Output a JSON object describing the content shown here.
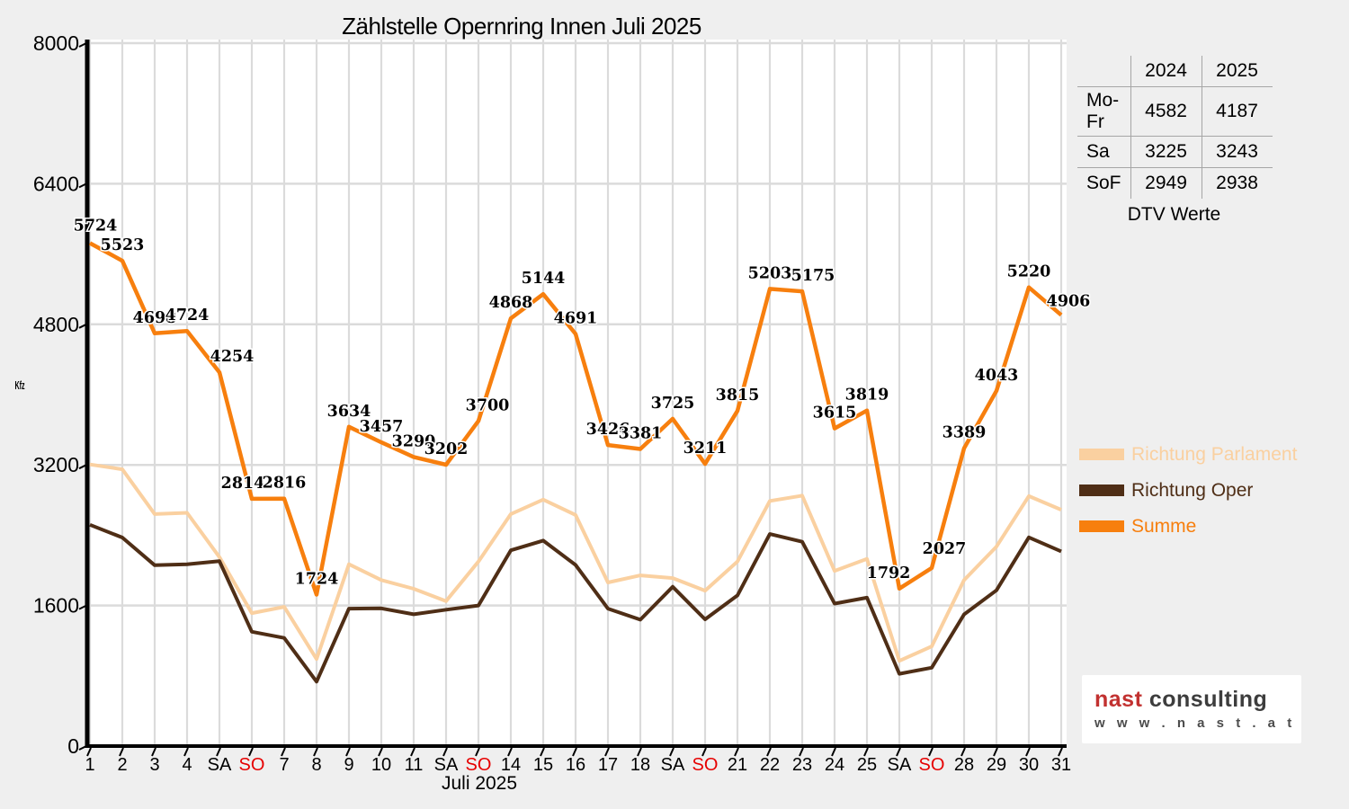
{
  "title": "Zählstelle Opernring Innen Juli 2025",
  "chart_data": {
    "type": "line",
    "x_labels": [
      "1",
      "2",
      "3",
      "4",
      "SA",
      "SO",
      "7",
      "8",
      "9",
      "10",
      "11",
      "SA",
      "SO",
      "14",
      "15",
      "16",
      "17",
      "18",
      "SA",
      "SO",
      "21",
      "22",
      "23",
      "24",
      "25",
      "SA",
      "SO",
      "28",
      "29",
      "30",
      "31"
    ],
    "xlabel": "Juli 2025",
    "ylabel": "Kfz",
    "ylim": [
      0,
      8000
    ],
    "yticks": [
      0,
      1600,
      3200,
      4800,
      6400,
      8000
    ],
    "grid": true,
    "legend_position": "right",
    "sunday_label_color": "#e60000",
    "series": [
      {
        "name": "Richtung Parlament",
        "color": "#fad0a0",
        "values": [
          3205,
          3150,
          2640,
          2655,
          2150,
          1513,
          1585,
          990,
          2070,
          1890,
          1790,
          1650,
          2100,
          2640,
          2805,
          2630,
          1862,
          1943,
          1912,
          1769,
          2100,
          2790,
          2850,
          1994,
          2130,
          970,
          1135,
          1890,
          2270,
          2845,
          2690
        ]
      },
      {
        "name": "Richtung Oper",
        "color": "#4f2e16",
        "values": [
          2519,
          2373,
          2058,
          2069,
          2104,
          1301,
          1231,
          734,
          1564,
          1567,
          1500,
          1552,
          1600,
          2228,
          2339,
          2061,
          1564,
          1438,
          1813,
          1442,
          1715,
          2413,
          2325,
          1621,
          1689,
          822,
          892,
          1499,
          1773,
          2375,
          2216
        ]
      },
      {
        "name": "Summe",
        "color": "#f77f0e",
        "labeled": true,
        "values": [
          5724,
          5523,
          4698,
          4724,
          4254,
          2814,
          2816,
          1724,
          3634,
          3457,
          3290,
          3202,
          3700,
          4868,
          5144,
          4691,
          3426,
          3381,
          3725,
          3211,
          3815,
          5203,
          5175,
          3615,
          3819,
          1792,
          2027,
          3389,
          4043,
          5220,
          4906
        ]
      }
    ]
  },
  "table": {
    "col_headers": [
      "2024",
      "2025"
    ],
    "rows": [
      {
        "label": "Mo-Fr",
        "v2024": "4582",
        "v2025": "4187"
      },
      {
        "label": "Sa",
        "v2024": "3225",
        "v2025": "3243"
      },
      {
        "label": "SoF",
        "v2024": "2949",
        "v2025": "2938"
      }
    ],
    "caption": "DTV Werte"
  },
  "legend": {
    "items": [
      {
        "label": "Richtung Parlament",
        "color": "#fad0a0"
      },
      {
        "label": "Richtung Oper",
        "color": "#4f2e16"
      },
      {
        "label": "Summe",
        "color": "#f77f0e"
      }
    ]
  },
  "logo": {
    "brand_red": "nast",
    "brand_dark": "consulting",
    "url": "w w w . n a s t . a t"
  },
  "colors": {
    "background": "#efefef",
    "plot_background": "#ffffff",
    "gridline": "#dbdbdb",
    "axis": "#000000",
    "table_line": "#a6a6a6",
    "sunday_red": "#e60000"
  }
}
